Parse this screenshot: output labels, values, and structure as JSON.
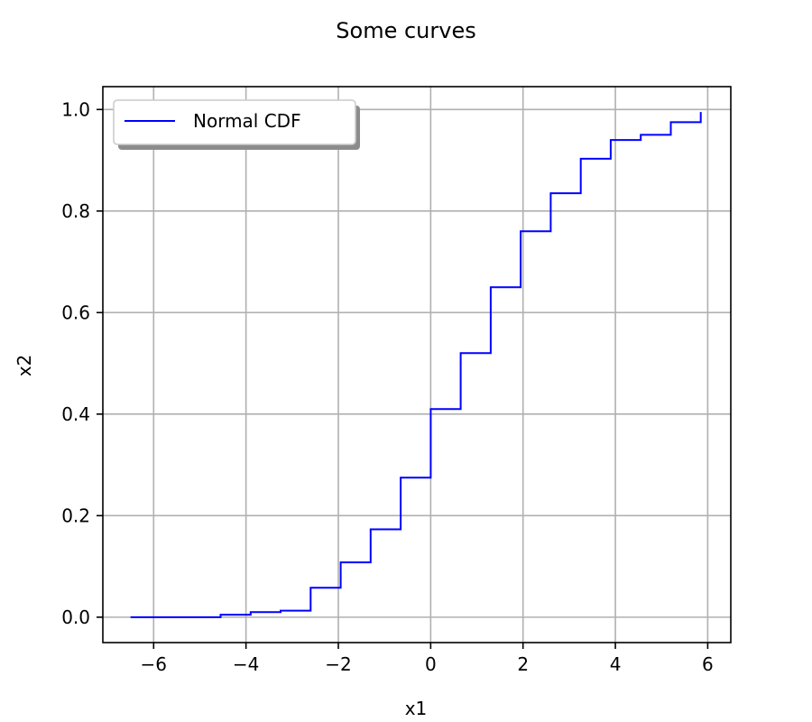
{
  "chart_data": {
    "type": "line",
    "step": true,
    "title": "Some curves",
    "xlabel": "x1",
    "ylabel": "x2",
    "xlim": [
      -7.1,
      6.5
    ],
    "ylim": [
      -0.05,
      1.045
    ],
    "xticks": [
      -6,
      -4,
      -2,
      0,
      2,
      4,
      6
    ],
    "xtick_labels": [
      "−6",
      "−4",
      "−2",
      "0",
      "2",
      "4",
      "6"
    ],
    "yticks": [
      0.0,
      0.2,
      0.4,
      0.6,
      0.8,
      1.0
    ],
    "ytick_labels": [
      "0.0",
      "0.2",
      "0.4",
      "0.6",
      "0.8",
      "1.0"
    ],
    "grid": true,
    "legend_position": "top-left",
    "series": [
      {
        "name": "Normal CDF",
        "color": "#0000ff",
        "x": [
          -6.5,
          -4.55,
          -3.9,
          -3.25,
          -2.6,
          -1.95,
          -1.3,
          -0.65,
          0.0,
          0.65,
          1.3,
          1.95,
          2.6,
          3.25,
          3.9,
          4.55,
          5.2,
          5.85
        ],
        "y": [
          0.0,
          0.005,
          0.01,
          0.013,
          0.058,
          0.108,
          0.173,
          0.275,
          0.41,
          0.52,
          0.65,
          0.76,
          0.835,
          0.903,
          0.94,
          0.95,
          0.975,
          0.995
        ]
      }
    ]
  }
}
